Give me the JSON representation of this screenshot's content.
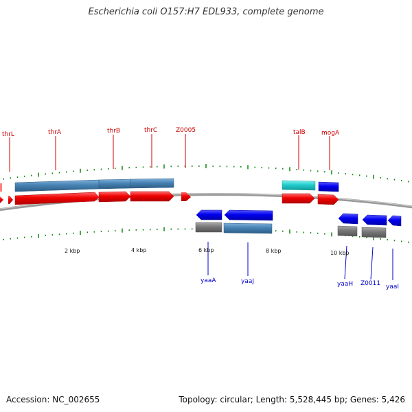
{
  "title": "Escherichia coli O157:H7 EDL933, complete genome",
  "footer": {
    "accession": "Accession: NC_002655",
    "summary": "Topology: circular; Length: 5,528,445 bp; Genes: 5,426"
  },
  "colors": {
    "forward_cds": "#ee0000",
    "forward_gene": "#4682b4",
    "forward_special": "#22cccc",
    "reverse_cds": "#0000ee",
    "reverse_gene": "#777777",
    "forward_label": "#cc0000",
    "reverse_label": "#0000cc",
    "ticks": "#118811",
    "backbone": "#888888"
  },
  "scale": {
    "unit": "kbp",
    "labels": [
      "2 kbp",
      "4 kbp",
      "6 kbp",
      "8 kbp",
      "10 kbp"
    ]
  },
  "forward_labels": [
    "thrL",
    "thrA",
    "thrB",
    "thrC",
    "Z0005",
    "talB",
    "mogA"
  ],
  "reverse_labels": [
    "yaaA",
    "yaaJ",
    "yaaH",
    "Z0011",
    "yaaI"
  ]
}
